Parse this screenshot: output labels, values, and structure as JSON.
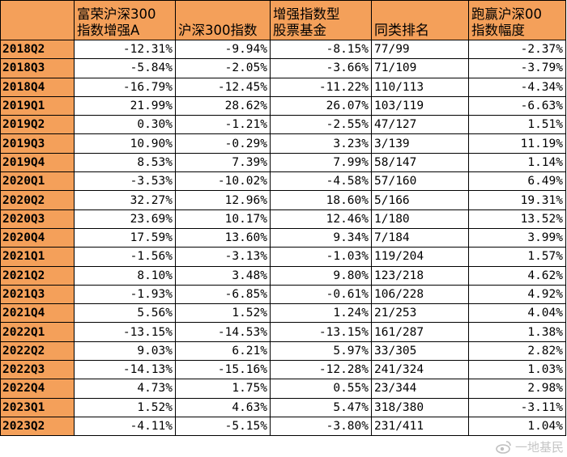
{
  "table": {
    "headers": [
      {
        "line1": "",
        "line2": ""
      },
      {
        "line1": "富荣沪深300",
        "line2": "指数增强A"
      },
      {
        "line1": "",
        "line2": "沪深300指数"
      },
      {
        "line1": "增强指数型",
        "line2": "股票基金"
      },
      {
        "line1": "",
        "line2": "同类排名"
      },
      {
        "line1": "跑赢沪深00",
        "line2": "指数幅度"
      }
    ],
    "rows": [
      {
        "quarter": "2018Q2",
        "fund": "-12.31%",
        "index": "-9.94%",
        "category": "-8.15%",
        "rank": "77/99",
        "excess": "-2.37%"
      },
      {
        "quarter": "2018Q3",
        "fund": "-5.84%",
        "index": "-2.05%",
        "category": "-3.66%",
        "rank": "71/109",
        "excess": "-3.79%"
      },
      {
        "quarter": "2018Q4",
        "fund": "-16.79%",
        "index": "-12.45%",
        "category": "-11.22%",
        "rank": "110/113",
        "excess": "-4.34%"
      },
      {
        "quarter": "2019Q1",
        "fund": "21.99%",
        "index": "28.62%",
        "category": "26.07%",
        "rank": "103/119",
        "excess": "-6.63%"
      },
      {
        "quarter": "2019Q2",
        "fund": "0.30%",
        "index": "-1.21%",
        "category": "-2.55%",
        "rank": "47/127",
        "excess": "1.51%"
      },
      {
        "quarter": "2019Q3",
        "fund": "10.90%",
        "index": "-0.29%",
        "category": "3.23%",
        "rank": "3/139",
        "excess": "11.19%"
      },
      {
        "quarter": "2019Q4",
        "fund": "8.53%",
        "index": "7.39%",
        "category": "7.99%",
        "rank": "58/147",
        "excess": "1.14%"
      },
      {
        "quarter": "2020Q1",
        "fund": "-3.53%",
        "index": "-10.02%",
        "category": "-4.58%",
        "rank": "57/160",
        "excess": "6.49%"
      },
      {
        "quarter": "2020Q2",
        "fund": "32.27%",
        "index": "12.96%",
        "category": "18.60%",
        "rank": "5/166",
        "excess": "19.31%"
      },
      {
        "quarter": "2020Q3",
        "fund": "23.69%",
        "index": "10.17%",
        "category": "12.46%",
        "rank": "1/180",
        "excess": "13.52%"
      },
      {
        "quarter": "2020Q4",
        "fund": "17.59%",
        "index": "13.60%",
        "category": "9.34%",
        "rank": "7/184",
        "excess": "3.99%"
      },
      {
        "quarter": "2021Q1",
        "fund": "-1.56%",
        "index": "-3.13%",
        "category": "-1.03%",
        "rank": "119/204",
        "excess": "1.57%"
      },
      {
        "quarter": "2021Q2",
        "fund": "8.10%",
        "index": "3.48%",
        "category": "9.80%",
        "rank": "123/218",
        "excess": "4.62%"
      },
      {
        "quarter": "2021Q3",
        "fund": "-1.93%",
        "index": "-6.85%",
        "category": "-0.61%",
        "rank": "106/228",
        "excess": "4.92%"
      },
      {
        "quarter": "2021Q4",
        "fund": "5.56%",
        "index": "1.52%",
        "category": "1.24%",
        "rank": "21/253",
        "excess": "4.04%"
      },
      {
        "quarter": "2022Q1",
        "fund": "-13.15%",
        "index": "-14.53%",
        "category": "-13.15%",
        "rank": "161/287",
        "excess": "1.38%"
      },
      {
        "quarter": "2022Q2",
        "fund": "9.03%",
        "index": "6.21%",
        "category": "5.97%",
        "rank": "33/305",
        "excess": "2.82%"
      },
      {
        "quarter": "2022Q3",
        "fund": "-14.13%",
        "index": "-15.16%",
        "category": "-12.28%",
        "rank": "241/324",
        "excess": "1.03%"
      },
      {
        "quarter": "2022Q4",
        "fund": "4.73%",
        "index": "1.75%",
        "category": "0.55%",
        "rank": "23/344",
        "excess": "2.98%"
      },
      {
        "quarter": "2023Q1",
        "fund": "1.52%",
        "index": "4.63%",
        "category": "5.47%",
        "rank": "318/380",
        "excess": "-3.11%"
      },
      {
        "quarter": "2023Q2",
        "fund": "-4.11%",
        "index": "-5.15%",
        "category": "-3.80%",
        "rank": "231/411",
        "excess": "1.04%"
      }
    ]
  },
  "watermark": {
    "text": "一地基民",
    "icon": "weibo-icon"
  },
  "colors": {
    "header_bg": "#f4a05a",
    "grid": "#000000",
    "text": "#000000"
  }
}
